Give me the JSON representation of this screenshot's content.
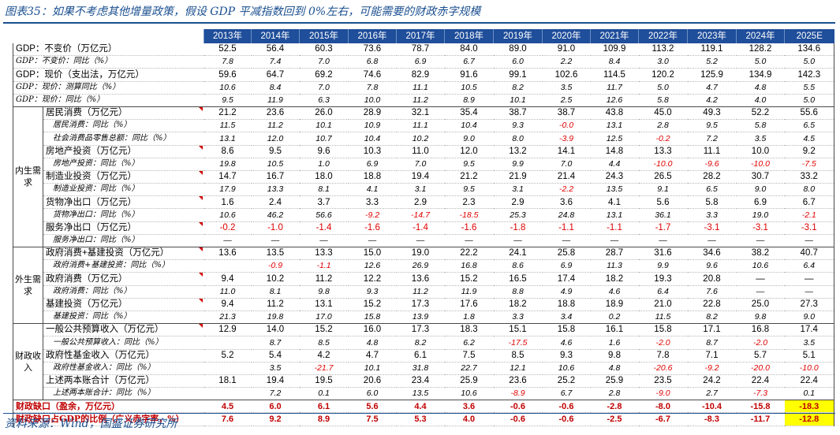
{
  "title": "图表35：如果不考虑其他增量政策，假设 GDP 平减指数回到 0%左右，可能需要的财政赤字规模",
  "source": "资料来源：Wind，国盛证券研究所",
  "years": [
    "2013年",
    "2014年",
    "2015年",
    "2016年",
    "2017年",
    "2018年",
    "2019年",
    "2020年",
    "2021年",
    "2022年",
    "2023年",
    "2024年",
    "2025E"
  ],
  "rows": [
    {
      "label": "GDP：不变价（万亿元）",
      "v": [
        "52.5",
        "56.4",
        "60.3",
        "73.6",
        "78.7",
        "84.0",
        "89.0",
        "91.0",
        "109.9",
        "113.2",
        "119.1",
        "128.2",
        "134.6"
      ]
    },
    {
      "label": "GDP：不变价：同比（%）",
      "v": [
        "7.8",
        "7.4",
        "7.0",
        "6.8",
        "6.9",
        "6.7",
        "6.0",
        "2.2",
        "8.4",
        "3.0",
        "5.2",
        "5.0",
        "5.0"
      ]
    },
    {
      "label": "GDP：现价（支出法，万亿元）",
      "v": [
        "59.6",
        "64.7",
        "69.2",
        "74.6",
        "82.9",
        "91.6",
        "99.1",
        "102.6",
        "114.5",
        "120.2",
        "125.9",
        "134.9",
        "142.3"
      ]
    },
    {
      "label": "GDP：现价：测算同比（%）",
      "v": [
        "10.6",
        "8.4",
        "7.0",
        "7.8",
        "11.1",
        "10.5",
        "8.2",
        "3.5",
        "11.7",
        "5.0",
        "4.7",
        "4.8",
        "5.5"
      ]
    },
    {
      "label": "GDP：现价：同比（%）",
      "v": [
        "9.5",
        "11.9",
        "6.3",
        "10.0",
        "11.2",
        "8.9",
        "10.1",
        "2.5",
        "12.6",
        "5.8",
        "4.2",
        "4.0",
        "5.0"
      ]
    },
    {
      "label": "居民消费（万亿元）",
      "v": [
        "21.2",
        "23.6",
        "26.0",
        "28.9",
        "32.1",
        "35.4",
        "38.7",
        "38.7",
        "43.8",
        "45.0",
        "49.3",
        "52.2",
        "55.6"
      ]
    },
    {
      "label": "居民消费：同比（%）",
      "v": [
        "11.5",
        "11.2",
        "10.1",
        "10.9",
        "11.1",
        "10.4",
        "9.3",
        "-0.0",
        "13.1",
        "2.8",
        "9.5",
        "5.8",
        "6.5"
      ]
    },
    {
      "label": "社会消费品零售总额：同比（%）",
      "v": [
        "13.1",
        "12.0",
        "10.7",
        "10.4",
        "10.2",
        "9.0",
        "8.0",
        "-3.9",
        "12.5",
        "-0.2",
        "7.2",
        "3.5",
        "4.5"
      ]
    },
    {
      "label": "房地产投资（万亿元）",
      "v": [
        "8.6",
        "9.5",
        "9.6",
        "10.3",
        "11.0",
        "12.0",
        "13.2",
        "14.1",
        "14.8",
        "13.3",
        "11.1",
        "10.0",
        "9.2"
      ]
    },
    {
      "label": "房地产投资：同比（%）",
      "v": [
        "19.8",
        "10.5",
        "1.0",
        "6.9",
        "7.0",
        "9.5",
        "9.9",
        "7.0",
        "4.4",
        "-10.0",
        "-9.6",
        "-10.0",
        "-7.5"
      ]
    },
    {
      "label": "制造业投资（万亿元）",
      "v": [
        "14.7",
        "16.7",
        "18.0",
        "18.8",
        "19.4",
        "21.2",
        "21.9",
        "21.4",
        "24.3",
        "26.5",
        "28.2",
        "30.7",
        "33.2"
      ]
    },
    {
      "label": "制造业投资：同比（%）",
      "v": [
        "17.9",
        "13.3",
        "8.1",
        "4.1",
        "3.1",
        "9.5",
        "3.1",
        "-2.2",
        "13.5",
        "9.1",
        "6.5",
        "9.0",
        "8.0"
      ]
    },
    {
      "label": "货物净出口（万亿元）",
      "v": [
        "1.6",
        "2.4",
        "3.7",
        "3.3",
        "2.9",
        "2.3",
        "2.9",
        "3.6",
        "4.1",
        "5.6",
        "5.8",
        "6.9",
        "6.7"
      ]
    },
    {
      "label": "货物净出口：同比（%）",
      "v": [
        "10.6",
        "46.2",
        "56.6",
        "-9.2",
        "-14.7",
        "-18.5",
        "25.3",
        "24.8",
        "13.1",
        "36.1",
        "3.3",
        "19.0",
        "-2.1"
      ]
    },
    {
      "label": "服务净出口（万亿元）",
      "v": [
        "-0.2",
        "-1.0",
        "-1.4",
        "-1.6",
        "-1.4",
        "-1.6",
        "-1.8",
        "-1.1",
        "-1.1",
        "-1.7",
        "-3.1",
        "-3.1",
        "-3.1"
      ]
    },
    {
      "label": "服务净出口：同比（%）",
      "v": [
        "—",
        "—",
        "—",
        "—",
        "—",
        "—",
        "—",
        "—",
        "—",
        "—",
        "—",
        "—",
        "—"
      ]
    },
    {
      "label": "政府消费+基建投资（万亿元）",
      "v": [
        "13.6",
        "13.5",
        "13.3",
        "15.0",
        "19.0",
        "22.2",
        "24.1",
        "25.8",
        "28.7",
        "31.6",
        "34.6",
        "38.2",
        "40.7"
      ]
    },
    {
      "label": "政府消费+基建投资：同比（%）",
      "v": [
        "",
        "-0.9",
        "-1.1",
        "12.6",
        "26.9",
        "16.8",
        "8.6",
        "6.9",
        "11.3",
        "9.9",
        "9.6",
        "10.6",
        "6.4"
      ]
    },
    {
      "label": "政府消费（万亿元）",
      "v": [
        "9.4",
        "10.2",
        "11.2",
        "12.2",
        "13.6",
        "15.2",
        "16.5",
        "17.4",
        "18.2",
        "19.3",
        "20.8",
        "—",
        "—"
      ]
    },
    {
      "label": "政府消费：同比（%）",
      "v": [
        "11.0",
        "8.1",
        "9.8",
        "9.3",
        "11.2",
        "11.9",
        "8.8",
        "4.9",
        "4.6",
        "6.4",
        "7.6",
        "—",
        "—"
      ]
    },
    {
      "label": "基建投资（万亿元）",
      "v": [
        "9.4",
        "11.2",
        "13.1",
        "15.2",
        "17.3",
        "17.6",
        "18.2",
        "18.8",
        "18.9",
        "21.0",
        "22.8",
        "25.0",
        "27.3"
      ]
    },
    {
      "label": "基建投资：同比（%）",
      "v": [
        "21.3",
        "19.8",
        "17.0",
        "15.8",
        "13.9",
        "1.8",
        "3.3",
        "3.4",
        "0.2",
        "11.5",
        "8.2",
        "9.8",
        "9.0"
      ]
    },
    {
      "label": "一般公共预算收入（万亿元）",
      "v": [
        "12.9",
        "14.0",
        "15.2",
        "16.0",
        "17.3",
        "18.3",
        "15.1",
        "15.8",
        "16.1",
        "15.8",
        "17.1",
        "16.8",
        "17.4"
      ]
    },
    {
      "label": "一般公共预算收入：同比（%）",
      "v": [
        "",
        "8.7",
        "8.5",
        "4.8",
        "8.2",
        "6.2",
        "-17.5",
        "4.6",
        "1.6",
        "-2.0",
        "8.7",
        "-2.0",
        "3.5"
      ]
    },
    {
      "label": "政府性基金收入（万亿元）",
      "v": [
        "5.2",
        "5.4",
        "4.2",
        "4.7",
        "6.1",
        "7.5",
        "8.5",
        "9.3",
        "9.8",
        "7.8",
        "7.1",
        "5.7",
        "5.1"
      ]
    },
    {
      "label": "政府性基金收入：同比（%）",
      "v": [
        "",
        "3.5",
        "-21.7",
        "10.1",
        "31.8",
        "22.7",
        "12.1",
        "10.6",
        "4.8",
        "-20.6",
        "-9.2",
        "-20.0",
        "-10.0"
      ]
    },
    {
      "label": "上述两本账合计（万亿元）",
      "v": [
        "18.1",
        "19.4",
        "19.5",
        "20.6",
        "23.4",
        "25.9",
        "23.6",
        "25.2",
        "25.9",
        "23.5",
        "24.2",
        "22.4",
        "22.4"
      ]
    },
    {
      "label": "上述两本账合计：同比（%）",
      "v": [
        "",
        "7.2",
        "0.1",
        "6.0",
        "13.5",
        "10.6",
        "-8.9",
        "6.7",
        "2.8",
        "-9.0",
        "2.7",
        "-7.3",
        "0.1"
      ]
    },
    {
      "label": "财政缺口（盈余，万亿元）",
      "v": [
        "4.5",
        "6.0",
        "6.1",
        "5.6",
        "4.4",
        "3.6",
        "-0.6",
        "-0.6",
        "-2.8",
        "-8.0",
        "-10.4",
        "-15.8",
        "-18.3"
      ]
    },
    {
      "label": "财政缺口占GDP的比例（广义赤字率，%）",
      "v": [
        "7.6",
        "9.2",
        "8.9",
        "7.5",
        "5.3",
        "4.0",
        "-0.6",
        "-0.6",
        "-2.5",
        "-6.7",
        "-8.3",
        "-11.7",
        "-12.8"
      ]
    }
  ],
  "groups": {
    "domestic": "内生需求",
    "external": "外生需求",
    "fiscal": "财政收入"
  }
}
